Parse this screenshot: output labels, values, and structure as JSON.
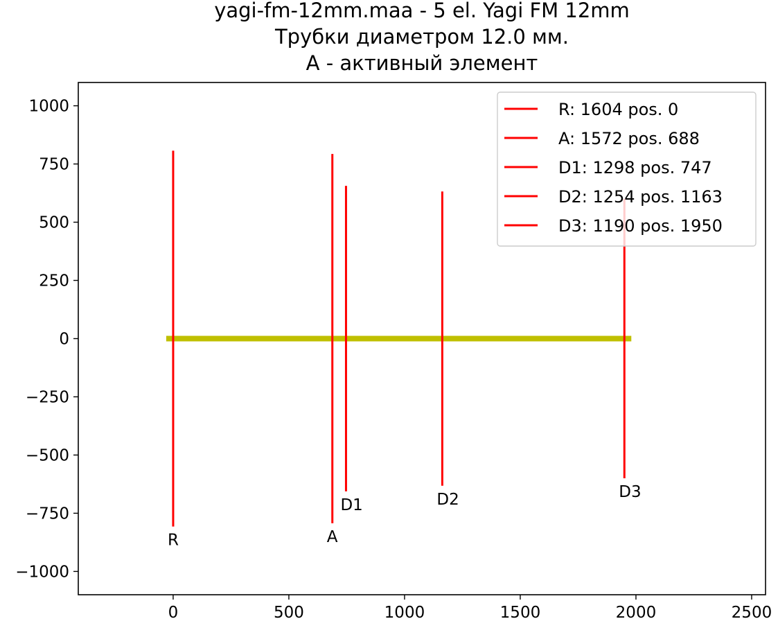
{
  "chart_data": {
    "type": "line",
    "title_lines": [
      "yagi-fm-12mm.maa - 5 el. Yagi FM 12mm",
      "Трубки диаметром 12.0 мм.",
      "A - активный элемент"
    ],
    "xlim": [
      -410,
      2560
    ],
    "ylim": [
      -1100,
      1100
    ],
    "x_ticks": [
      0,
      500,
      1000,
      1500,
      2000,
      2500
    ],
    "x_tick_labels": [
      "0",
      "500",
      "1000",
      "1500",
      "2000",
      "2500"
    ],
    "y_ticks": [
      1000,
      750,
      500,
      250,
      0,
      -250,
      -500,
      -750,
      -1000
    ],
    "y_tick_labels": [
      "1000",
      "750",
      "500",
      "250",
      "0",
      "−250",
      "−500",
      "−750",
      "−1000"
    ],
    "grid": false,
    "legend_position": "top-right",
    "boom": {
      "x": [
        -30,
        1980
      ],
      "y": 0,
      "color": "#bfbf00"
    },
    "series": [
      {
        "name": "R: 1604 pos. 0",
        "label": "R",
        "length": 1604,
        "position": 0,
        "y_top": 807,
        "y_bottom": -807,
        "color": "#ff0000"
      },
      {
        "name": "A: 1572 pos. 688",
        "label": "A",
        "length": 1572,
        "position": 688,
        "y_top": 793,
        "y_bottom": -793,
        "color": "#ff0000"
      },
      {
        "name": "D1: 1298 pos. 747",
        "label": "D1",
        "length": 1298,
        "position": 747,
        "y_top": 656,
        "y_bottom": -656,
        "color": "#ff0000"
      },
      {
        "name": "D2: 1254 pos. 1163",
        "label": "D2",
        "length": 1254,
        "position": 1163,
        "y_top": 632,
        "y_bottom": -632,
        "color": "#ff0000"
      },
      {
        "name": "D3: 1190 pos. 1950",
        "label": "D3",
        "length": 1190,
        "position": 1950,
        "y_top": 600,
        "y_bottom": -600,
        "color": "#ff0000"
      }
    ]
  }
}
